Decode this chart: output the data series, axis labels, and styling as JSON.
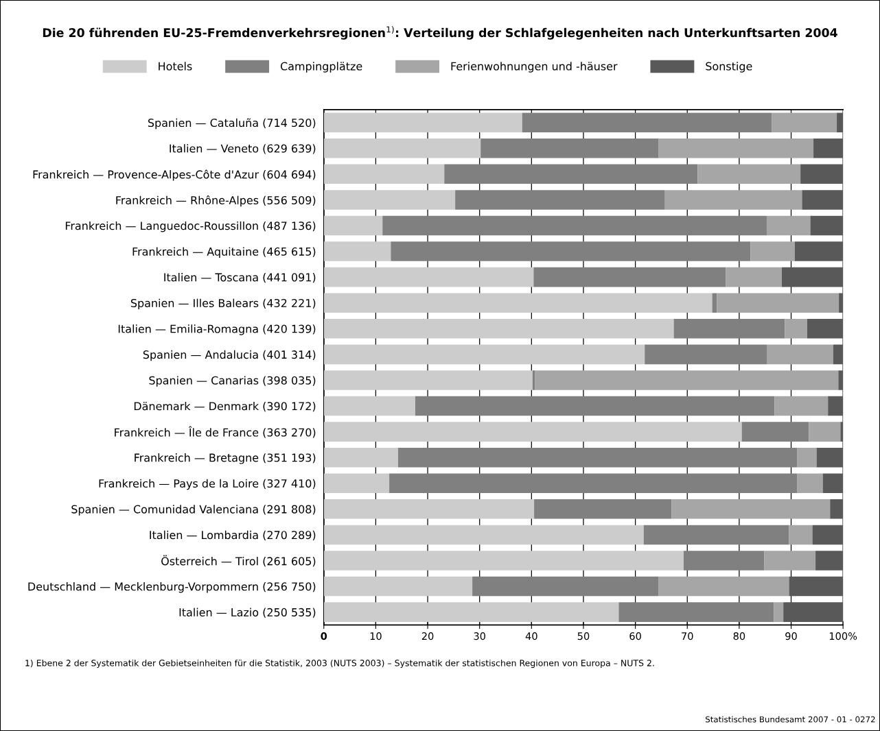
{
  "chart_data": {
    "type": "bar",
    "orientation": "horizontal",
    "stacked": true,
    "title": "Die 20 führenden EU-25-Fremdenverkehrsregionen$^{1)}$: Verteilung der Schlafgelegenheiten nach Unterkunftsarten 2004",
    "categories": [
      "Spanien — Cataluña (714 520)",
      "Italien — Veneto (629 639)",
      "Frankreich — Provence-Alpes-Côte d'Azur (604 694)",
      "Frankreich — Rhône-Alpes (556 509)",
      "Frankreich — Languedoc-Roussillon (487 136)",
      "Frankreich — Aquitaine (465 615)",
      "Italien — Toscana (441 091)",
      "Spanien — Illes Balears (432 221)",
      "Italien — Emilia-Romagna (420 139)",
      "Spanien — Andalucia (401 314)",
      "Spanien — Canarias (398 035)",
      "Dänemark — Denmark (390 172)",
      "Frankreich — Île de France (363 270)",
      "Frankreich — Bretagne (351 193)",
      "Frankreich — Pays de la Loire (327 410)",
      "Spanien — Comunidad Valenciana (291 808)",
      "Italien — Lombardia (270 289)",
      "Österreich — Tirol (261 605)",
      "Deutschland — Mecklenburg-Vorpommern (256 750)",
      "Italien — Lazio (250 535)"
    ],
    "series": [
      {
        "name": "Hotels",
        "color": "#cccccc",
        "values": [
          38.2,
          30.2,
          23.2,
          25.3,
          11.3,
          12.9,
          40.4,
          74.8,
          67.4,
          61.8,
          40.2,
          17.6,
          80.5,
          14.3,
          12.6,
          40.5,
          61.6,
          69.3,
          28.6,
          56.8
        ]
      },
      {
        "name": "Campingplätze",
        "color": "#808080",
        "values": [
          48.1,
          34.3,
          48.8,
          40.4,
          74.0,
          69.3,
          37.0,
          0.9,
          21.4,
          23.6,
          0.5,
          69.2,
          12.9,
          76.9,
          78.6,
          26.5,
          28.0,
          15.5,
          35.9,
          29.9
        ]
      },
      {
        "name": "Ferienwohnungen und -häuser",
        "color": "#a6a6a6",
        "values": [
          12.5,
          29.8,
          19.8,
          26.4,
          8.4,
          8.5,
          10.8,
          23.5,
          4.3,
          12.7,
          58.4,
          10.3,
          6.1,
          3.7,
          4.9,
          30.5,
          4.5,
          9.9,
          25.1,
          1.8
        ]
      },
      {
        "name": "Sonstige",
        "color": "#595959",
        "values": [
          1.2,
          5.7,
          8.2,
          7.9,
          6.3,
          9.3,
          11.8,
          0.8,
          6.9,
          1.9,
          0.9,
          2.9,
          0.5,
          5.1,
          3.9,
          2.5,
          5.9,
          5.3,
          10.4,
          11.5
        ]
      }
    ],
    "xlim": [
      0,
      100
    ],
    "xticks": [
      0,
      10,
      20,
      30,
      40,
      50,
      60,
      70,
      80,
      90,
      {
        "value": 100,
        "label": "100%"
      }
    ],
    "grid": "x",
    "legend": "top",
    "annotations": [
      "1) Ebene 2 der Systematik der Gebietseinheiten für die Statistik, 2003 (NUTS 2003) – Systematik der statistischen Regionen von Europa – NUTS 2.",
      "Statistisches Bundesamt 2007 - 01 - 0272"
    ]
  }
}
